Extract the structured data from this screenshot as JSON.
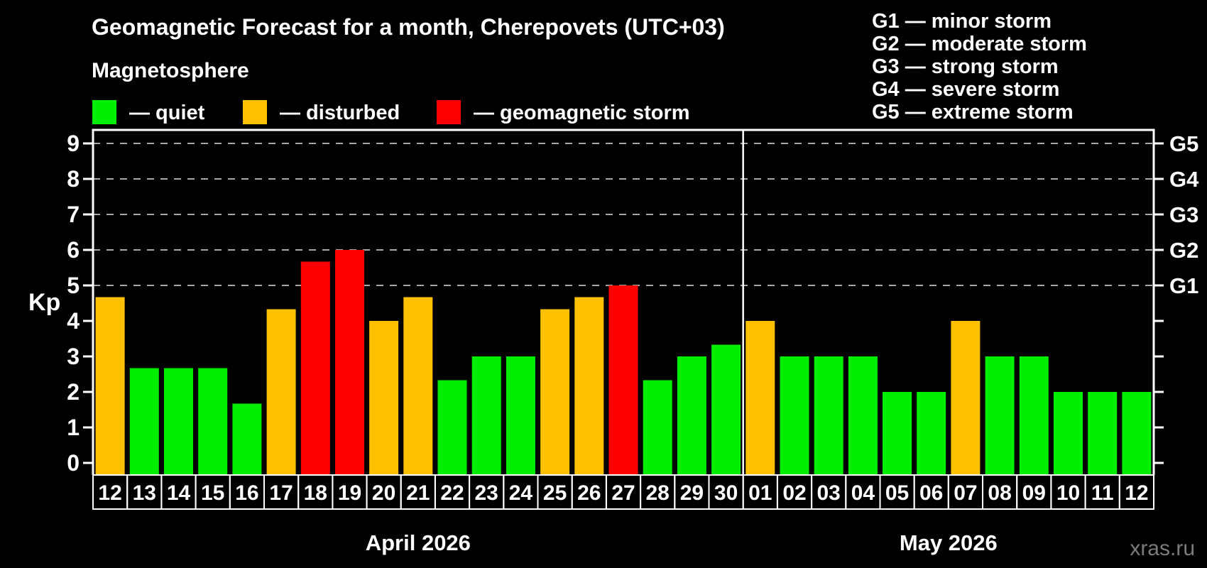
{
  "title": "Geomagnetic Forecast for a month, Cherepovets (UTC+03)",
  "subtitle": "Magnetosphere",
  "legend": {
    "quiet": {
      "label": "— quiet",
      "color": "#00ee00"
    },
    "disturbed": {
      "label": "— disturbed",
      "color": "#ffc000"
    },
    "storm": {
      "label": "— geomagnetic storm",
      "color": "#ff0000"
    }
  },
  "g_legend": [
    "G1 — minor storm",
    "G2 — moderate storm",
    "G3 — strong storm",
    "G4 — severe storm",
    "G5 — extreme storm"
  ],
  "watermark": "xras.ru",
  "chart_data": {
    "type": "bar",
    "title": "Geomagnetic Forecast for a month, Cherepovets (UTC+03)",
    "ylabel": "Kp",
    "ylim": [
      0,
      9
    ],
    "y_ticks": [
      0,
      1,
      2,
      3,
      4,
      5,
      6,
      7,
      8,
      9
    ],
    "gridlines_at": [
      5,
      6,
      7,
      8,
      9
    ],
    "grid": "dashed horizontal at storm levels only",
    "legend_position": "top",
    "g_axis": {
      "G1": 5,
      "G2": 6,
      "G3": 7,
      "G4": 8,
      "G5": 9
    },
    "months": [
      {
        "label": "April 2026",
        "days": 19
      },
      {
        "label": "May 2026",
        "days": 12
      }
    ],
    "categories": [
      "12",
      "13",
      "14",
      "15",
      "16",
      "17",
      "18",
      "19",
      "20",
      "21",
      "22",
      "23",
      "24",
      "25",
      "26",
      "27",
      "28",
      "29",
      "30",
      "01",
      "02",
      "03",
      "04",
      "05",
      "06",
      "07",
      "08",
      "09",
      "10",
      "11",
      "12"
    ],
    "values": [
      4.67,
      2.67,
      2.67,
      2.67,
      1.67,
      4.33,
      5.67,
      6.0,
      4.0,
      4.67,
      2.33,
      3.0,
      3.0,
      4.33,
      4.67,
      5.0,
      2.33,
      3.0,
      3.33,
      4.0,
      3.0,
      3.0,
      3.0,
      2.0,
      2.0,
      4.0,
      3.0,
      3.0,
      2.0,
      2.0,
      2.0
    ],
    "point_status": [
      "disturbed",
      "quiet",
      "quiet",
      "quiet",
      "quiet",
      "disturbed",
      "storm",
      "storm",
      "disturbed",
      "disturbed",
      "quiet",
      "quiet",
      "quiet",
      "disturbed",
      "disturbed",
      "storm",
      "quiet",
      "quiet",
      "quiet",
      "disturbed",
      "quiet",
      "quiet",
      "quiet",
      "quiet",
      "quiet",
      "disturbed",
      "quiet",
      "quiet",
      "quiet",
      "quiet",
      "quiet"
    ],
    "colors": {
      "quiet": "#00ee00",
      "disturbed": "#ffc000",
      "storm": "#ff0000"
    }
  }
}
